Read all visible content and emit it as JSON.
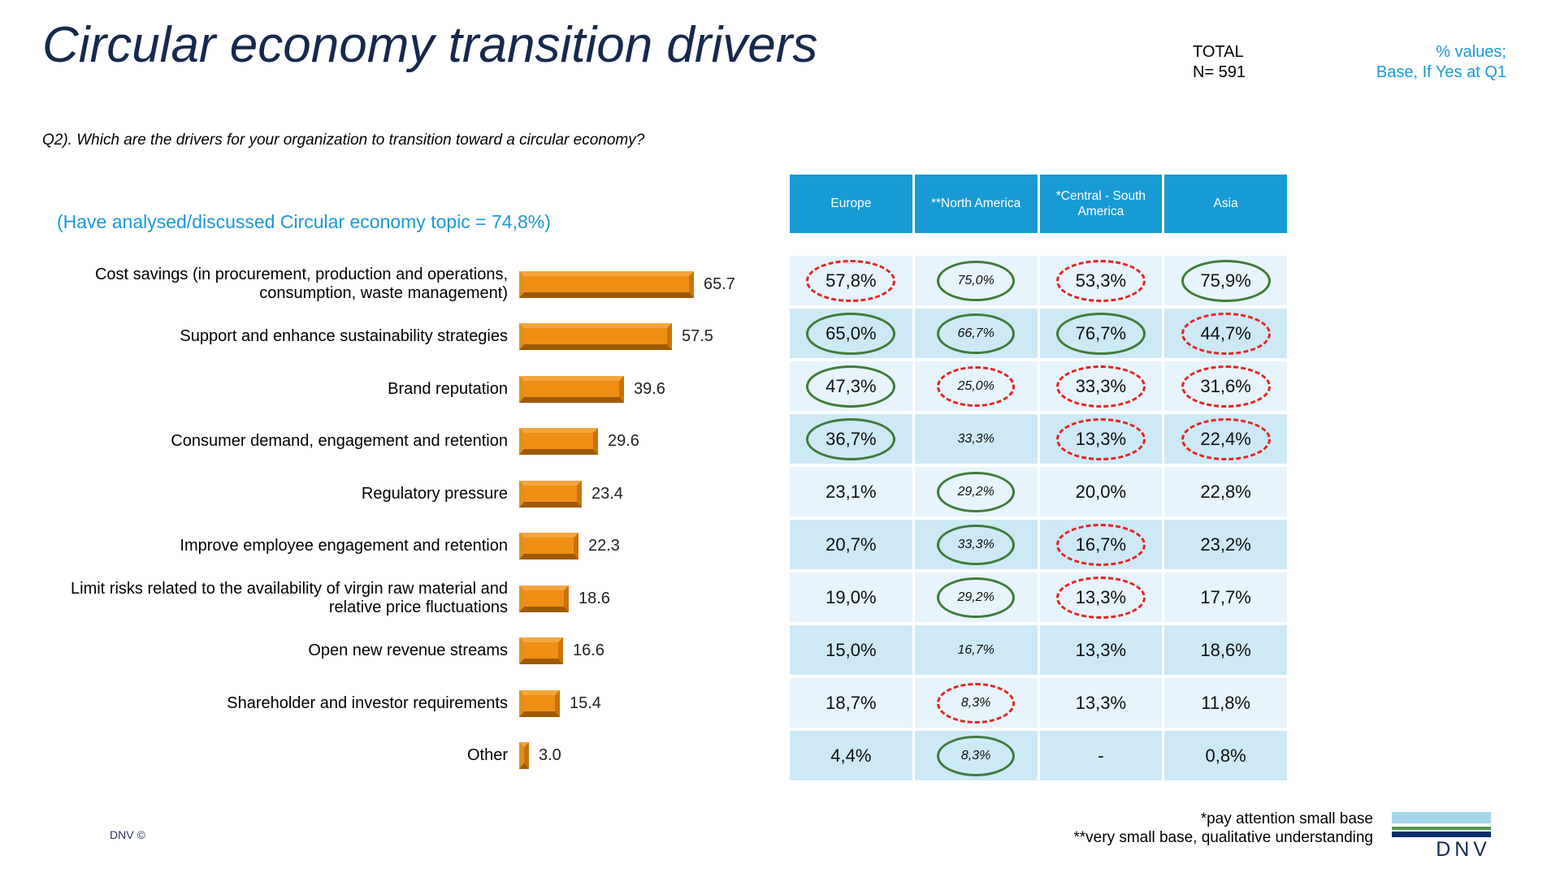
{
  "header": {
    "title": "Circular economy transition drivers",
    "total_label": "TOTAL",
    "total_n": "N= 591",
    "values_note_line1": "% values;",
    "values_note_line2": "Base, If Yes at Q1"
  },
  "question": "Q2). Which are the drivers for your organization to transition toward a circular economy?",
  "subtitle": "(Have analysed/discussed Circular economy topic = 74,8%)",
  "chart_data": [
    {
      "type": "bar",
      "orientation": "horizontal",
      "title": "Circular economy transition drivers",
      "categories": [
        "Cost savings (in procurement, production and operations, consumption, waste management)",
        "Support and enhance sustainability strategies",
        "Brand reputation",
        "Consumer demand, engagement and retention",
        "Regulatory pressure",
        "Improve employee engagement and retention",
        "Limit risks related to the availability of virgin raw material and relative price fluctuations",
        "Open new revenue streams",
        "Shareholder and investor requirements",
        "Other"
      ],
      "values": [
        65.7,
        57.5,
        39.6,
        29.6,
        23.4,
        22.3,
        18.6,
        16.6,
        15.4,
        3.0
      ],
      "xlabel": "",
      "ylabel": "",
      "xlim": [
        0,
        70
      ],
      "grid": false,
      "legend": false,
      "bar_color": "#F08E14"
    },
    {
      "type": "table",
      "columns": [
        "Europe",
        "**North America",
        "*Central - South America",
        "Asia"
      ],
      "rows": [
        [
          {
            "v": "57,8%",
            "mark": "red"
          },
          {
            "v": "75,0%",
            "mark": "green"
          },
          {
            "v": "53,3%",
            "mark": "red"
          },
          {
            "v": "75,9%",
            "mark": "green"
          }
        ],
        [
          {
            "v": "65,0%",
            "mark": "green"
          },
          {
            "v": "66,7%",
            "mark": "green"
          },
          {
            "v": "76,7%",
            "mark": "green"
          },
          {
            "v": "44,7%",
            "mark": "red"
          }
        ],
        [
          {
            "v": "47,3%",
            "mark": "green"
          },
          {
            "v": "25,0%",
            "mark": "red"
          },
          {
            "v": "33,3%",
            "mark": "red"
          },
          {
            "v": "31,6%",
            "mark": "red"
          }
        ],
        [
          {
            "v": "36,7%",
            "mark": "green"
          },
          {
            "v": "33,3%",
            "mark": null
          },
          {
            "v": "13,3%",
            "mark": "red"
          },
          {
            "v": "22,4%",
            "mark": "red"
          }
        ],
        [
          {
            "v": "23,1%",
            "mark": null
          },
          {
            "v": "29,2%",
            "mark": "green"
          },
          {
            "v": "20,0%",
            "mark": null
          },
          {
            "v": "22,8%",
            "mark": null
          }
        ],
        [
          {
            "v": "20,7%",
            "mark": null
          },
          {
            "v": "33,3%",
            "mark": "green"
          },
          {
            "v": "16,7%",
            "mark": "red"
          },
          {
            "v": "23,2%",
            "mark": null
          }
        ],
        [
          {
            "v": "19,0%",
            "mark": null
          },
          {
            "v": "29,2%",
            "mark": "green"
          },
          {
            "v": "13,3%",
            "mark": "red"
          },
          {
            "v": "17,7%",
            "mark": null
          }
        ],
        [
          {
            "v": "15,0%",
            "mark": null
          },
          {
            "v": "16,7%",
            "mark": null
          },
          {
            "v": "13,3%",
            "mark": null
          },
          {
            "v": "18,6%",
            "mark": null
          }
        ],
        [
          {
            "v": "18,7%",
            "mark": null
          },
          {
            "v": "8,3%",
            "mark": "red"
          },
          {
            "v": "13,3%",
            "mark": null
          },
          {
            "v": "11,8%",
            "mark": null
          }
        ],
        [
          {
            "v": "4,4%",
            "mark": null
          },
          {
            "v": "8,3%",
            "mark": "green"
          },
          {
            "v": "-",
            "mark": null
          },
          {
            "v": "0,8%",
            "mark": null
          }
        ]
      ],
      "header_color": "#189AD5",
      "mark_colors": {
        "green": "#3E7C3A",
        "red": "#E52320"
      }
    }
  ],
  "footnotes": {
    "line1": "*pay attention small base",
    "line2": "**very small base, qualitative understanding"
  },
  "footer": {
    "copyright": "DNV ©",
    "logo_text": "DNV"
  }
}
